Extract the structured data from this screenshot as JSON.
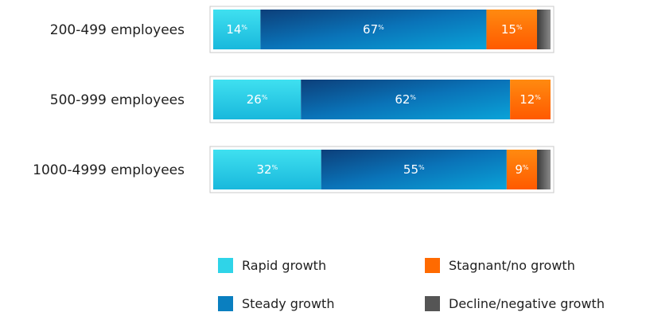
{
  "chart_data": {
    "type": "bar",
    "orientation": "horizontal",
    "stacked": true,
    "categories": [
      "200-499  employees",
      "500-999  employees",
      "1000-4999  employees"
    ],
    "series": [
      {
        "name": "Rapid growth",
        "values": [
          14,
          26,
          32
        ],
        "color": "#2fd4e8"
      },
      {
        "name": "Steady growth",
        "values": [
          67,
          62,
          55
        ],
        "color": "#0a7fc0"
      },
      {
        "name": "Stagnant/no growth",
        "values": [
          15,
          12,
          9
        ],
        "color": "#ff6a00"
      },
      {
        "name": "Decline/negative growth",
        "values": [
          4,
          0,
          4
        ],
        "color": "#555555"
      }
    ],
    "data_labels": [
      [
        "14",
        "67",
        "15",
        ""
      ],
      [
        "26",
        "62",
        "12",
        ""
      ],
      [
        "32",
        "55",
        "9",
        ""
      ]
    ],
    "percent_sign": "%",
    "xlim": [
      0,
      100
    ],
    "legend_position": "bottom",
    "grid": false
  }
}
